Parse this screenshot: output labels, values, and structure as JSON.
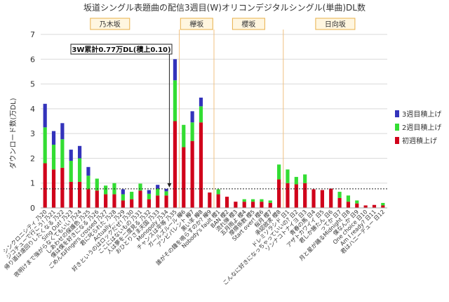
{
  "chart_data": {
    "type": "bar",
    "title": "坂道シングル表題曲の配信3週目(W)オリコンデジタルシングル(単曲)DL数",
    "ylabel": "ダウンロード数(万DL)",
    "xlabel": "",
    "ylim": [
      0,
      7
    ],
    "yticks": [
      0,
      1,
      2,
      3,
      4,
      5,
      6,
      7
    ],
    "grid": true,
    "reference_line": {
      "value": 0.77,
      "label": "3W累計0.77万DL(積上0.10)"
    },
    "groups": [
      "乃木坂",
      "欅坂",
      "櫻坂",
      "日向坂"
    ],
    "categories": [
      "シンクロニシティ 乃20",
      "ジコチューで行こう! 乃21",
      "帰り道は遠回りしたくなる 乃22",
      "Sing Out! 乃23",
      "夜明けまで強がらなくてもいい 乃24",
      "しあわせの保護色 乃25",
      "僕は僕を好きになる 乃26",
      "ごめんねFingers crossed 乃27",
      "君に叱られた 乃28",
      "Actually... 乃29",
      "好きというのはロックだぜ! 乃30",
      "ここにはないもの 乃31",
      "人は夢を二度見る 乃32",
      "おひとりさま天国 乃33",
      "Monopoly 乃34",
      "チャンスは平等 乃35",
      "ガールズルール 欅6",
      "アンビバレント 欅7",
      "黒い羊 欅8",
      "誰がその鐘を鳴らすのか? 欅9",
      "Nobody's fault 櫻1",
      "BAN 櫻2",
      "流れ弾 櫻3",
      "五月雨よ 櫻4",
      "摩擦係数 櫻5",
      "Start over! 櫻6",
      "桜月 櫻7",
      "承認欲求 櫻8",
      "ドレミソラシド 日1",
      "こんなに好きになっちゃっていいの? 日2",
      "ソンナコトナイヨ 日3",
      "青春の馬 日4",
      "アザトカワイイ 日5",
      "君しか勝たん 日6",
      "ってか 日7",
      "月と星が踊るMidnight 日8",
      "僕なんか 日9",
      "One choice 日10",
      "Am I ready? 日11",
      "君はハニーデュー 日12"
    ],
    "series": [
      {
        "name": "初週積上げ",
        "color": "#d0021b",
        "values": [
          1.8,
          1.55,
          1.62,
          1.05,
          1.05,
          0.75,
          0.7,
          0.55,
          0.55,
          0.3,
          0.35,
          0.7,
          0.35,
          0.5,
          0.5,
          3.5,
          2.45,
          2.7,
          3.45,
          0.62,
          0.55,
          0.45,
          0.25,
          0.25,
          0.25,
          0.25,
          0.2,
          1.15,
          1.0,
          0.95,
          1.0,
          0.75,
          0.72,
          0.78,
          0.4,
          0.25,
          0.18,
          0.1,
          0.12,
          0.1
        ]
      },
      {
        "name": "2週目積上げ",
        "color": "#33dd33",
        "values": [
          1.45,
          1.0,
          1.15,
          0.85,
          0.95,
          0.55,
          0.48,
          0.35,
          0.45,
          0.25,
          0.3,
          0.28,
          0.22,
          0.28,
          0.17,
          1.65,
          0.9,
          0.75,
          0.65,
          0.0,
          0.2,
          0.0,
          0.0,
          0.1,
          0.1,
          0.1,
          0.1,
          0.6,
          0.55,
          0.3,
          0.35,
          0.0,
          0.0,
          0.0,
          0.25,
          0.25,
          0.12,
          0.0,
          0.0,
          0.1
        ]
      },
      {
        "name": "3週目積上げ",
        "color": "#3333bb",
        "values": [
          0.95,
          0.55,
          0.65,
          0.45,
          0.5,
          0.35,
          0.0,
          0.0,
          0.0,
          0.2,
          0.0,
          0.0,
          0.15,
          0.15,
          0.1,
          0.85,
          0.0,
          0.45,
          0.35,
          0.0,
          0.0,
          0.0,
          0.0,
          0.0,
          0.0,
          0.0,
          0.0,
          0.0,
          0.0,
          0.0,
          0.0,
          0.0,
          0.0,
          0.0,
          0.0,
          0.0,
          0.0,
          0.0,
          0.0,
          0.0
        ]
      }
    ],
    "legend_position": "right"
  }
}
